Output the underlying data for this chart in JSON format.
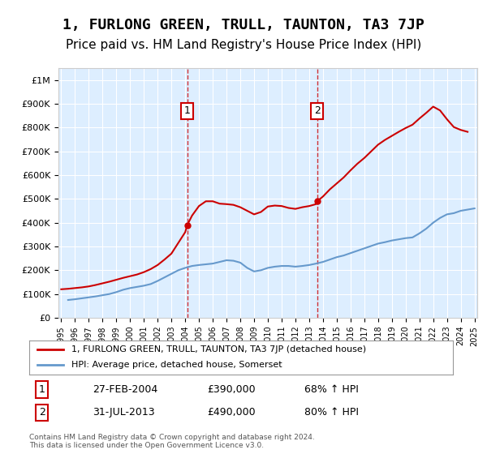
{
  "title": "1, FURLONG GREEN, TRULL, TAUNTON, TA3 7JP",
  "subtitle": "Price paid vs. HM Land Registry's House Price Index (HPI)",
  "title_fontsize": 13,
  "subtitle_fontsize": 11,
  "background_color": "#ffffff",
  "plot_bg_color": "#ddeeff",
  "ylim": [
    0,
    1050000
  ],
  "yticks": [
    0,
    100000,
    200000,
    300000,
    400000,
    500000,
    600000,
    700000,
    800000,
    900000,
    1000000
  ],
  "ytick_labels": [
    "£0",
    "£100K",
    "£200K",
    "£300K",
    "£400K",
    "£500K",
    "£600K",
    "£700K",
    "£800K",
    "£900K",
    "£1M"
  ],
  "x_start_year": 1995,
  "x_end_year": 2025,
  "xtick_years": [
    1995,
    1996,
    1997,
    1998,
    1999,
    2000,
    2001,
    2002,
    2003,
    2004,
    2005,
    2006,
    2007,
    2008,
    2009,
    2010,
    2011,
    2012,
    2013,
    2014,
    2015,
    2016,
    2017,
    2018,
    2019,
    2020,
    2021,
    2022,
    2023,
    2024,
    2025
  ],
  "hpi_color": "#6699cc",
  "price_color": "#cc0000",
  "marker1_year": 2004.15,
  "marker2_year": 2013.58,
  "marker1_price": 390000,
  "marker2_price": 490000,
  "legend_line1": "1, FURLONG GREEN, TRULL, TAUNTON, TA3 7JP (detached house)",
  "legend_line2": "HPI: Average price, detached house, Somerset",
  "annotation1_label": "1",
  "annotation1_date": "27-FEB-2004",
  "annotation1_price": "£390,000",
  "annotation1_hpi": "68% ↑ HPI",
  "annotation2_label": "2",
  "annotation2_date": "31-JUL-2013",
  "annotation2_price": "£490,000",
  "annotation2_hpi": "80% ↑ HPI",
  "footer": "Contains HM Land Registry data © Crown copyright and database right 2024.\nThis data is licensed under the Open Government Licence v3.0.",
  "hpi_data": {
    "years": [
      1995.5,
      1996.0,
      1996.5,
      1997.0,
      1997.5,
      1998.0,
      1998.5,
      1999.0,
      1999.5,
      2000.0,
      2000.5,
      2001.0,
      2001.5,
      2002.0,
      2002.5,
      2003.0,
      2003.5,
      2004.0,
      2004.5,
      2005.0,
      2005.5,
      2006.0,
      2006.5,
      2007.0,
      2007.5,
      2008.0,
      2008.5,
      2009.0,
      2009.5,
      2010.0,
      2010.5,
      2011.0,
      2011.5,
      2012.0,
      2012.5,
      2013.0,
      2013.5,
      2014.0,
      2014.5,
      2015.0,
      2015.5,
      2016.0,
      2016.5,
      2017.0,
      2017.5,
      2018.0,
      2018.5,
      2019.0,
      2019.5,
      2020.0,
      2020.5,
      2021.0,
      2021.5,
      2022.0,
      2022.5,
      2023.0,
      2023.5,
      2024.0,
      2024.5,
      2025.0
    ],
    "values": [
      75000,
      78000,
      82000,
      86000,
      90000,
      95000,
      100000,
      108000,
      118000,
      125000,
      130000,
      135000,
      142000,
      155000,
      170000,
      185000,
      200000,
      210000,
      218000,
      222000,
      225000,
      228000,
      235000,
      242000,
      240000,
      232000,
      210000,
      195000,
      200000,
      210000,
      215000,
      218000,
      218000,
      215000,
      218000,
      222000,
      228000,
      235000,
      245000,
      255000,
      262000,
      272000,
      282000,
      292000,
      302000,
      312000,
      318000,
      325000,
      330000,
      335000,
      338000,
      355000,
      375000,
      400000,
      420000,
      435000,
      440000,
      450000,
      455000,
      460000
    ]
  },
  "price_data": {
    "years": [
      1995.0,
      1995.5,
      1996.0,
      1996.5,
      1997.0,
      1997.5,
      1998.0,
      1998.5,
      1999.0,
      1999.5,
      2000.0,
      2000.5,
      2001.0,
      2001.5,
      2002.0,
      2002.5,
      2003.0,
      2003.5,
      2004.0,
      2004.15,
      2004.5,
      2005.0,
      2005.5,
      2006.0,
      2006.5,
      2007.0,
      2007.5,
      2008.0,
      2008.5,
      2009.0,
      2009.5,
      2010.0,
      2010.5,
      2011.0,
      2011.5,
      2012.0,
      2012.5,
      2013.0,
      2013.5,
      2013.58,
      2014.0,
      2014.5,
      2015.0,
      2015.5,
      2016.0,
      2016.5,
      2017.0,
      2017.5,
      2018.0,
      2018.5,
      2019.0,
      2019.5,
      2020.0,
      2020.5,
      2021.0,
      2021.5,
      2022.0,
      2022.5,
      2023.0,
      2023.5,
      2024.0,
      2024.5
    ],
    "values": [
      120000,
      122000,
      125000,
      128000,
      132000,
      138000,
      145000,
      152000,
      160000,
      168000,
      175000,
      182000,
      192000,
      205000,
      222000,
      245000,
      270000,
      315000,
      360000,
      390000,
      430000,
      470000,
      490000,
      490000,
      480000,
      478000,
      475000,
      465000,
      450000,
      435000,
      445000,
      468000,
      472000,
      470000,
      462000,
      458000,
      465000,
      470000,
      478000,
      490000,
      510000,
      540000,
      565000,
      590000,
      620000,
      648000,
      672000,
      700000,
      728000,
      748000,
      765000,
      782000,
      798000,
      812000,
      838000,
      862000,
      888000,
      872000,
      835000,
      802000,
      790000,
      782000
    ]
  }
}
